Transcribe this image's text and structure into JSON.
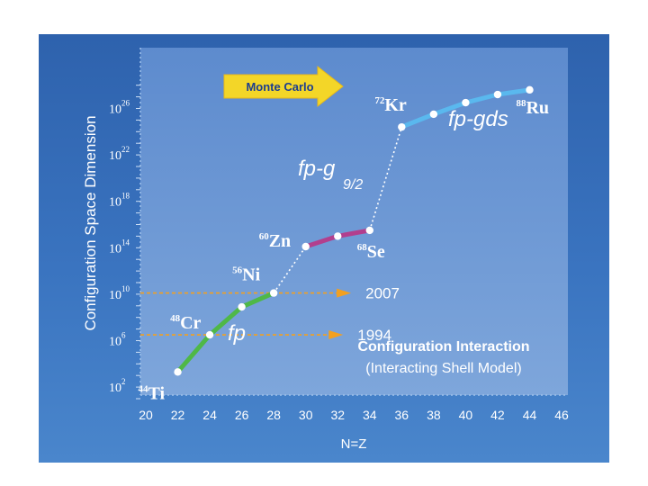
{
  "chart_data": {
    "type": "line",
    "xlabel": "N=Z",
    "ylabel": "Configuration Space Dimension",
    "x_ticks": [
      "20",
      "22",
      "24",
      "26",
      "28",
      "30",
      "32",
      "34",
      "36",
      "38",
      "40",
      "42",
      "44",
      "46"
    ],
    "xlim": [
      20,
      46
    ],
    "y_scale": "log",
    "y_ticks": [
      {
        "base": "10",
        "exp": "2",
        "value": 2
      },
      {
        "base": "10",
        "exp": "6",
        "value": 6
      },
      {
        "base": "10",
        "exp": "10",
        "value": 10
      },
      {
        "base": "10",
        "exp": "14",
        "value": 14
      },
      {
        "base": "10",
        "exp": "18",
        "value": 18
      },
      {
        "base": "10",
        "exp": "22",
        "value": 22
      },
      {
        "base": "10",
        "exp": "26",
        "value": 26
      }
    ],
    "ylim_log10": [
      1,
      28
    ],
    "series": [
      {
        "name": "fp",
        "color": "#4fb848",
        "points": [
          [
            22,
            3.3
          ],
          [
            24,
            6.5
          ],
          [
            26,
            8.9
          ],
          [
            28,
            10.1
          ]
        ]
      },
      {
        "name": "fp-g9/2",
        "color": "#b23f8e",
        "points": [
          [
            30,
            14.1
          ],
          [
            32,
            15.0
          ],
          [
            34,
            15.5
          ]
        ]
      },
      {
        "name": "fp-gds",
        "color": "#5ab8ee",
        "points": [
          [
            36,
            24.4
          ],
          [
            38,
            25.5
          ],
          [
            40,
            26.5
          ],
          [
            42,
            27.2
          ],
          [
            44,
            27.6
          ]
        ]
      }
    ],
    "connectors": [
      {
        "from": [
          28,
          10.1
        ],
        "to": [
          30,
          14.1
        ]
      },
      {
        "from": [
          34,
          15.5
        ],
        "to": [
          36,
          24.4
        ]
      }
    ],
    "nuclei": [
      {
        "mass": "44",
        "symbol": "Ti",
        "x": 22,
        "y": 3.3
      },
      {
        "mass": "48",
        "symbol": "Cr",
        "x": 24,
        "y": 6.5
      },
      {
        "mass": "56",
        "symbol": "Ni",
        "x": 28,
        "y": 10.1
      },
      {
        "mass": "60",
        "symbol": "Zn",
        "x": 30,
        "y": 14.1
      },
      {
        "mass": "68",
        "symbol": "Se",
        "x": 34,
        "y": 15.5
      },
      {
        "mass": "72",
        "symbol": "Kr",
        "x": 36,
        "y": 24.4
      },
      {
        "mass": "88",
        "symbol": "Ru",
        "x": 44,
        "y": 27.6
      }
    ],
    "reference_lines": [
      {
        "label": "1994",
        "y": 6.5
      },
      {
        "label": "2007",
        "y": 10.1
      }
    ],
    "model_space_labels": [
      {
        "text": "fp",
        "sub": ""
      },
      {
        "text": "fp-g",
        "sub": "9/2"
      },
      {
        "text": "fp-gds",
        "sub": ""
      }
    ],
    "method_arrow": {
      "text": "Monte Carlo",
      "color": "#f2d324"
    },
    "caption_title": "Configuration Interaction",
    "caption_subtitle": "(Interacting Shell Model)",
    "colors": {
      "background": "#3366b0",
      "plot_area": "#6f98d4",
      "ref_line": "#f2a020",
      "connector": "#ffffff"
    }
  }
}
